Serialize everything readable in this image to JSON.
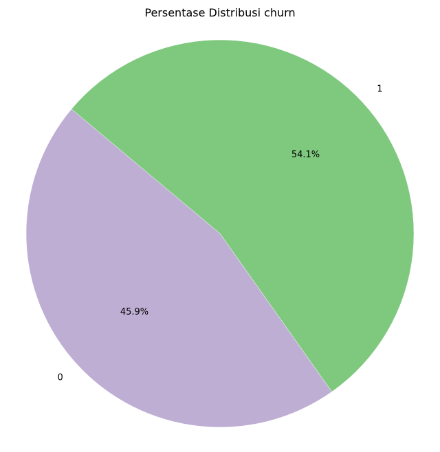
{
  "chart_data": {
    "type": "pie",
    "title": "Persentase Distribusi churn",
    "slices": [
      {
        "label": "0",
        "value": 45.9,
        "pct_label": "45.9%",
        "color": "#beaed4"
      },
      {
        "label": "1",
        "value": 54.1,
        "pct_label": "54.1%",
        "color": "#7fc97f"
      }
    ],
    "start_angle_deg": 140,
    "direction": "counterclockwise",
    "slice_edge_color": "#ffffff"
  }
}
